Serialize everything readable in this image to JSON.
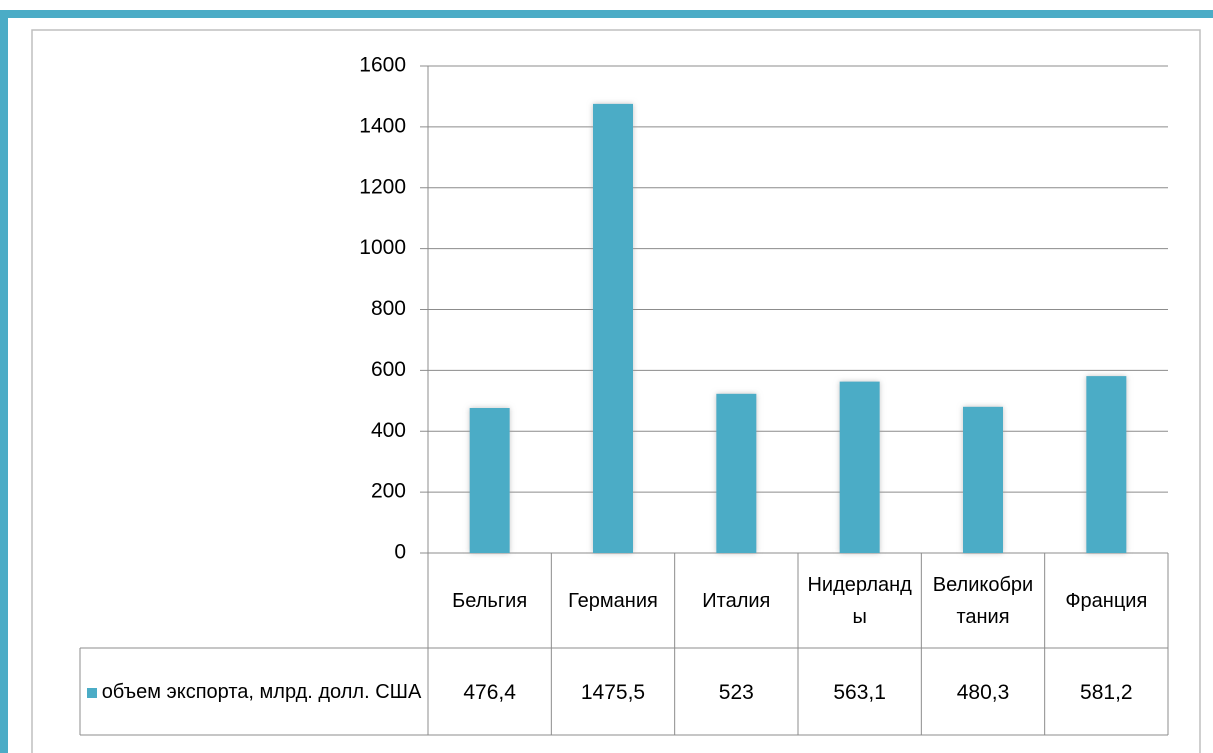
{
  "chart_data": {
    "type": "bar",
    "categories": [
      "Бельгия",
      "Германия",
      "Италия",
      "Нидерланды",
      "Великобритания",
      "Франция"
    ],
    "series": [
      {
        "name": "объем экспорта, млрд. долл. США",
        "color": "#4bacc6",
        "values": [
          476.4,
          1475.5,
          523,
          563.1,
          480.3,
          581.2
        ],
        "value_labels": [
          "476,4",
          "1475,5",
          "523",
          "563,1",
          "480,3",
          "581,2"
        ]
      }
    ],
    "ylim": [
      0,
      1600
    ],
    "yticks": [
      0,
      200,
      400,
      600,
      800,
      1000,
      1200,
      1400,
      1600
    ],
    "grid": true
  }
}
